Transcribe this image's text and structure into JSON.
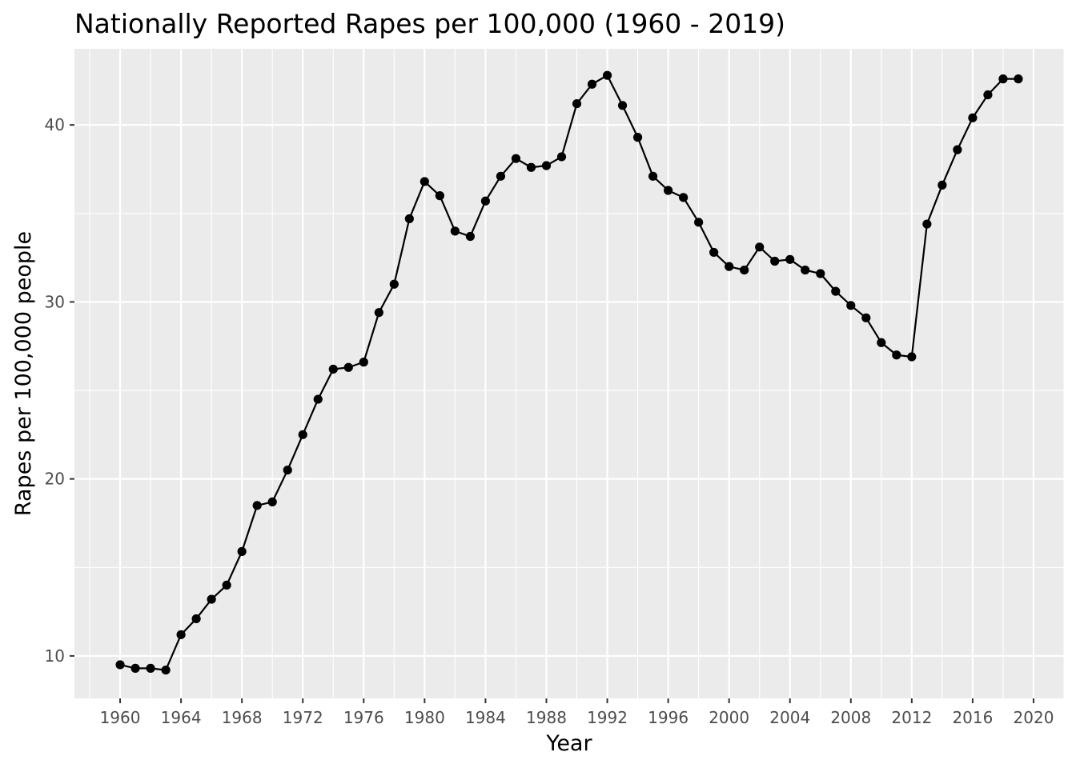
{
  "chart_data": {
    "type": "line",
    "title": "Nationally Reported Rapes per 100,000 (1960 - 2019)",
    "xlabel": "Year",
    "ylabel": "Rapes per 100,000 people",
    "xlim": [
      1957,
      2022
    ],
    "ylim": [
      7.6,
      44.3
    ],
    "x_ticks": [
      1960,
      1964,
      1968,
      1972,
      1976,
      1980,
      1984,
      1988,
      1992,
      1996,
      2000,
      2004,
      2008,
      2012,
      2016,
      2020
    ],
    "x_tick_labels": [
      "1960",
      "1964",
      "1968",
      "1972",
      "1976",
      "1980",
      "1984",
      "1988",
      "1992",
      "1996",
      "2000",
      "2004",
      "2008",
      "2012",
      "2016",
      "2020"
    ],
    "y_ticks": [
      10,
      20,
      30,
      40
    ],
    "y_tick_labels": [
      "10",
      "20",
      "30",
      "40"
    ],
    "grid": true,
    "panel_background": "#ebebeb",
    "line_color": "#000000",
    "point_color": "#000000",
    "series": [
      {
        "x": [
          1960,
          1961,
          1962,
          1963,
          1964,
          1965,
          1966,
          1967,
          1968,
          1969,
          1970,
          1971,
          1972,
          1973,
          1974,
          1975,
          1976,
          1977,
          1978,
          1979,
          1980,
          1981,
          1982,
          1983,
          1984,
          1985,
          1986,
          1987,
          1988,
          1989,
          1990,
          1991,
          1992,
          1993,
          1994,
          1995,
          1996,
          1997,
          1998,
          1999,
          2000,
          2001,
          2002,
          2003,
          2004,
          2005,
          2006,
          2007,
          2008,
          2009,
          2010,
          2011,
          2012,
          2013,
          2014,
          2015,
          2016,
          2017,
          2018,
          2019
        ],
        "values": [
          9.5,
          9.3,
          9.3,
          9.2,
          11.2,
          12.1,
          13.2,
          14.0,
          15.9,
          18.5,
          18.7,
          20.5,
          22.5,
          24.5,
          26.2,
          26.3,
          26.6,
          29.4,
          31.0,
          34.7,
          36.8,
          36.0,
          34.0,
          33.7,
          35.7,
          37.1,
          38.1,
          37.6,
          37.7,
          38.2,
          41.2,
          42.3,
          42.8,
          41.1,
          39.3,
          37.1,
          36.3,
          35.9,
          34.5,
          32.8,
          32.0,
          31.8,
          33.1,
          32.3,
          32.4,
          31.8,
          31.6,
          30.6,
          29.8,
          29.1,
          27.7,
          27.0,
          26.9,
          34.4,
          36.6,
          38.6,
          40.4,
          41.7,
          42.6,
          42.6
        ]
      }
    ]
  }
}
